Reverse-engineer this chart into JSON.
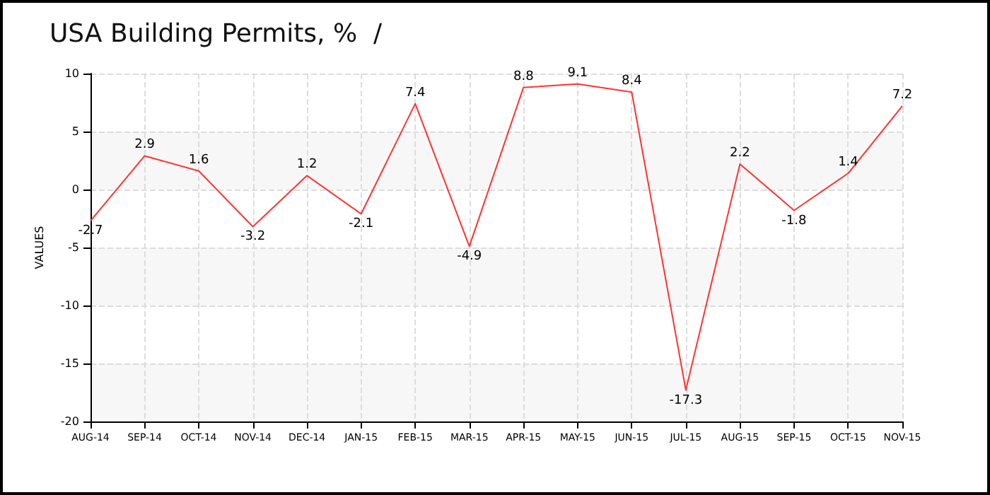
{
  "chart_data": {
    "type": "line",
    "title": "USA Building Permits, %  /",
    "ylabel": "VALUES",
    "categories": [
      "AUG-14",
      "SEP-14",
      "OCT-14",
      "NOV-14",
      "DEC-14",
      "JAN-15",
      "FEB-15",
      "MAR-15",
      "APR-15",
      "MAY-15",
      "JUN-15",
      "JUL-15",
      "AUG-15",
      "SEP-15",
      "OCT-15",
      "NOV-15"
    ],
    "series": [
      {
        "color": "#ff3333",
        "values": [
          -2.7,
          2.9,
          1.6,
          -3.2,
          1.2,
          -2.1,
          7.4,
          -4.9,
          8.8,
          9.1,
          8.4,
          -17.3,
          2.2,
          -1.8,
          1.4,
          7.2
        ]
      }
    ],
    "ylim": [
      -20,
      10
    ],
    "yticks": [
      -20,
      -15,
      -10,
      -5,
      0,
      5,
      10
    ],
    "grid": true,
    "data_labels": true,
    "marker": "none",
    "line_style": "solid"
  }
}
